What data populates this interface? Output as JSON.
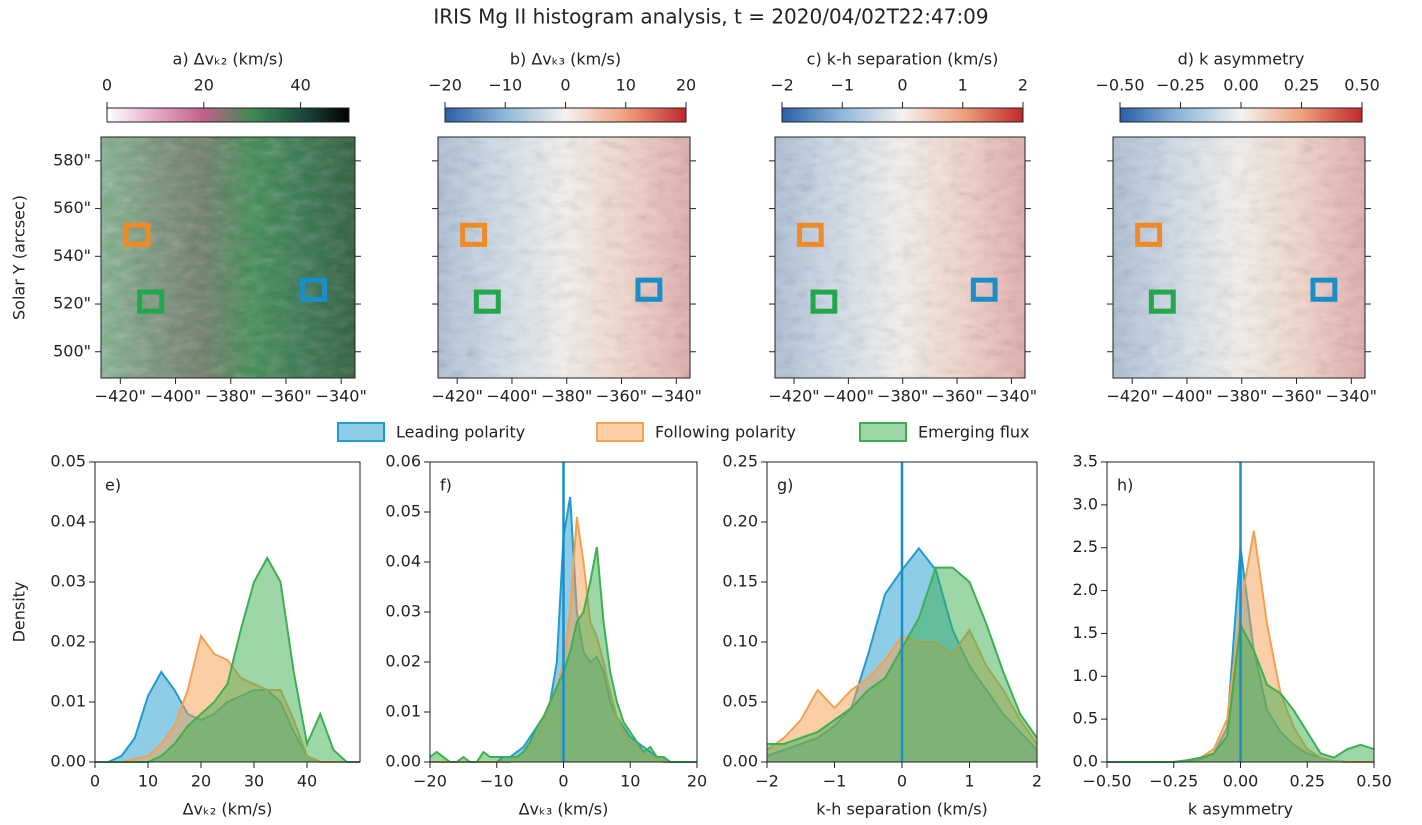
{
  "title": "IRIS Mg II histogram analysis, t = 2020/04/02T22:47:09",
  "chart_data": [
    {
      "type": "map",
      "title": "a) Δvₖ₂ (km/s)",
      "ylabel": "Solar Y (arcsec)",
      "colormap": [
        "#ffffff",
        "#e6a8c8",
        "#c0608a",
        "#3e8a52",
        "#1c4c40",
        "#000000"
      ],
      "clim": [
        0,
        50
      ],
      "cticks": [
        0,
        20,
        40
      ],
      "xlim": [
        -427,
        -335
      ],
      "ylim": [
        489,
        590
      ],
      "xticks": [
        {
          "value": -420,
          "label": "−420\""
        },
        {
          "value": -400,
          "label": "−400\""
        },
        {
          "value": -380,
          "label": "−380\""
        },
        {
          "value": -360,
          "label": "−360\""
        },
        {
          "value": -340,
          "label": "−340\""
        }
      ],
      "yticks": [
        {
          "value": 500,
          "label": "500\""
        },
        {
          "value": 520,
          "label": "520\""
        },
        {
          "value": 540,
          "label": "540\""
        },
        {
          "value": 560,
          "label": "560\""
        },
        {
          "value": 580,
          "label": "580\""
        }
      ],
      "ytick_labels": true,
      "box_size": 8,
      "boxes": [
        {
          "color": "#f08a24",
          "x": -414,
          "y": 549
        },
        {
          "color": "#22a84a",
          "x": -409,
          "y": 521
        },
        {
          "color": "#1a8ec8",
          "x": -350,
          "y": 526
        }
      ]
    },
    {
      "type": "map",
      "title": "b) Δvₖ₃ (km/s)",
      "colormap": [
        "#2a5fa8",
        "#8fb8da",
        "#f4f2f0",
        "#f0a080",
        "#c0282a"
      ],
      "clim": [
        -20,
        20
      ],
      "cticks": [
        {
          "value": -20,
          "label": "−20"
        },
        {
          "value": -10,
          "label": "−10"
        },
        0,
        10,
        20
      ],
      "xlim": [
        -427,
        -335
      ],
      "ylim": [
        489,
        590
      ],
      "xticks": [
        {
          "value": -420,
          "label": "−420\""
        },
        {
          "value": -400,
          "label": "−400\""
        },
        {
          "value": -380,
          "label": "−380\""
        },
        {
          "value": -360,
          "label": "−360\""
        },
        {
          "value": -340,
          "label": "−340\""
        }
      ],
      "yticks": [
        500,
        520,
        540,
        560,
        580
      ],
      "ytick_labels": false,
      "box_size": 8,
      "boxes": [
        {
          "color": "#f08a24",
          "x": -414,
          "y": 549
        },
        {
          "color": "#22a84a",
          "x": -409,
          "y": 521
        },
        {
          "color": "#1a8ec8",
          "x": -350,
          "y": 526
        }
      ]
    },
    {
      "type": "map",
      "title": "c) k-h separation (km/s)",
      "colormap": [
        "#2a5fa8",
        "#8fb8da",
        "#f4f2f0",
        "#f0a080",
        "#c0282a"
      ],
      "clim": [
        -2,
        2
      ],
      "cticks": [
        {
          "value": -2,
          "label": "−2"
        },
        {
          "value": -1,
          "label": "−1"
        },
        0,
        1,
        2
      ],
      "xlim": [
        -427,
        -335
      ],
      "ylim": [
        489,
        590
      ],
      "xticks": [
        {
          "value": -420,
          "label": "−420\""
        },
        {
          "value": -400,
          "label": "−400\""
        },
        {
          "value": -380,
          "label": "−380\""
        },
        {
          "value": -360,
          "label": "−360\""
        },
        {
          "value": -340,
          "label": "−340\""
        }
      ],
      "yticks": [
        500,
        520,
        540,
        560,
        580
      ],
      "ytick_labels": false,
      "box_size": 8,
      "boxes": [
        {
          "color": "#f08a24",
          "x": -414,
          "y": 549
        },
        {
          "color": "#22a84a",
          "x": -409,
          "y": 521
        },
        {
          "color": "#1a8ec8",
          "x": -350,
          "y": 526
        }
      ]
    },
    {
      "type": "map",
      "title": "d) k asymmetry",
      "colormap": [
        "#2a5fa8",
        "#8fb8da",
        "#f4f2f0",
        "#f0a080",
        "#c0282a"
      ],
      "clim": [
        -0.5,
        0.5
      ],
      "cticks": [
        {
          "value": -0.5,
          "label": "−0.50"
        },
        {
          "value": -0.25,
          "label": "−0.25"
        },
        {
          "value": 0,
          "label": "0.00"
        },
        {
          "value": 0.25,
          "label": "0.25"
        },
        {
          "value": 0.5,
          "label": "0.50"
        }
      ],
      "xlim": [
        -427,
        -335
      ],
      "ylim": [
        489,
        590
      ],
      "xticks": [
        {
          "value": -420,
          "label": "−420\""
        },
        {
          "value": -400,
          "label": "−400\""
        },
        {
          "value": -380,
          "label": "−380\""
        },
        {
          "value": -360,
          "label": "−360\""
        },
        {
          "value": -340,
          "label": "−340\""
        }
      ],
      "yticks": [
        500,
        520,
        540,
        560,
        580
      ],
      "ytick_labels": false,
      "box_size": 8,
      "boxes": [
        {
          "color": "#f08a24",
          "x": -414,
          "y": 549
        },
        {
          "color": "#22a84a",
          "x": -409,
          "y": 521
        },
        {
          "color": "#1a8ec8",
          "x": -350,
          "y": 526
        }
      ]
    },
    {
      "type": "density",
      "label": "e)",
      "xlabel": "Δvₖ₂ (km/s)",
      "ylabel": "Density",
      "xlim": [
        0,
        50
      ],
      "ylim": [
        0,
        0.05
      ],
      "xticks": [
        0,
        10,
        20,
        30,
        40
      ],
      "yticks": [
        {
          "value": 0,
          "label": "0.00"
        },
        0.01,
        0.02,
        0.03,
        0.04,
        0.05
      ],
      "x": [
        0,
        2.5,
        5,
        7.5,
        10,
        12.5,
        15,
        17.5,
        20,
        22.5,
        25,
        27.5,
        30,
        32.5,
        35,
        37.5,
        40,
        42.5,
        45,
        47.5,
        50
      ],
      "series": [
        {
          "name": "Leading polarity",
          "color": "#1f9bcf",
          "values": [
            0,
            0,
            0.001,
            0.004,
            0.011,
            0.015,
            0.012,
            0.008,
            0.007,
            0.008,
            0.01,
            0.011,
            0.012,
            0.012,
            0.01,
            0.005,
            0.001,
            0,
            0,
            0,
            0
          ]
        },
        {
          "name": "Following polarity",
          "color": "#f5a050",
          "values": [
            0,
            0,
            0,
            0.0005,
            0.001,
            0.003,
            0.006,
            0.012,
            0.021,
            0.018,
            0.017,
            0.014,
            0.013,
            0.012,
            0.012,
            0.007,
            0.001,
            0,
            0,
            0,
            0
          ]
        },
        {
          "name": "Emerging flux",
          "color": "#3cb050",
          "values": [
            0,
            0,
            0,
            0,
            0,
            0.001,
            0.003,
            0.006,
            0.008,
            0.01,
            0.013,
            0.022,
            0.03,
            0.034,
            0.03,
            0.015,
            0.003,
            0.008,
            0.002,
            0,
            0
          ]
        }
      ]
    },
    {
      "type": "density",
      "label": "f)",
      "xlabel": "Δvₖ₃ (km/s)",
      "xlim": [
        -20,
        20
      ],
      "ylim": [
        0,
        0.06
      ],
      "xticks": [
        {
          "value": -20,
          "label": "−20"
        },
        {
          "value": -10,
          "label": "−10"
        },
        0,
        10,
        20
      ],
      "yticks": [
        {
          "value": 0,
          "label": "0.00"
        },
        0.01,
        0.02,
        0.03,
        0.04,
        0.05,
        0.06
      ],
      "vline": 0,
      "vline_color": "#1a8ec8",
      "x": [
        -20,
        -19,
        -18,
        -17,
        -16,
        -15,
        -14,
        -13,
        -12,
        -11,
        -10,
        -9,
        -8,
        -7,
        -6,
        -5,
        -4,
        -3,
        -2,
        -1,
        0,
        1,
        2,
        3,
        4,
        5,
        6,
        7,
        8,
        9,
        10,
        11,
        12,
        13,
        14,
        15,
        16,
        17,
        18,
        19,
        20
      ],
      "series": [
        {
          "name": "Leading polarity",
          "color": "#1f9bcf",
          "values": [
            0,
            0,
            0,
            0,
            0,
            0,
            0,
            0,
            0,
            0,
            0,
            0.001,
            0.001,
            0.002,
            0.003,
            0.005,
            0.007,
            0.009,
            0.012,
            0.02,
            0.045,
            0.053,
            0.03,
            0.022,
            0.02,
            0.021,
            0.018,
            0.012,
            0.009,
            0.007,
            0.005,
            0.004,
            0.003,
            0.002,
            0.001,
            0.001,
            0,
            0,
            0,
            0,
            0
          ]
        },
        {
          "name": "Following polarity",
          "color": "#f5a050",
          "values": [
            0,
            0,
            0,
            0,
            0,
            0,
            0,
            0,
            0,
            0,
            0,
            0,
            0,
            0.001,
            0.002,
            0.003,
            0.005,
            0.008,
            0.012,
            0.015,
            0.02,
            0.03,
            0.049,
            0.04,
            0.028,
            0.025,
            0.02,
            0.014,
            0.009,
            0.006,
            0.004,
            0.003,
            0.002,
            0.001,
            0.001,
            0,
            0,
            0,
            0,
            0,
            0
          ]
        },
        {
          "name": "Emerging flux",
          "color": "#3cb050",
          "values": [
            0.001,
            0.002,
            0.001,
            0,
            0,
            0.001,
            0,
            0,
            0.002,
            0.001,
            0.001,
            0.001,
            0.001,
            0.001,
            0.002,
            0.004,
            0.007,
            0.009,
            0.012,
            0.015,
            0.018,
            0.022,
            0.028,
            0.03,
            0.036,
            0.043,
            0.028,
            0.018,
            0.012,
            0.008,
            0.006,
            0.004,
            0.002,
            0.003,
            0.001,
            0.001,
            0,
            0,
            0,
            0,
            0
          ]
        }
      ]
    },
    {
      "type": "density",
      "label": "g)",
      "xlabel": "k-h separation (km/s)",
      "xlim": [
        -2,
        2
      ],
      "ylim": [
        0,
        0.25
      ],
      "xticks": [
        {
          "value": -2,
          "label": "−2"
        },
        {
          "value": -1,
          "label": "−1"
        },
        0,
        1,
        2
      ],
      "yticks": [
        {
          "value": 0,
          "label": "0.00"
        },
        0.05,
        {
          "value": 0.1,
          "label": "0.10"
        },
        0.15,
        {
          "value": 0.2,
          "label": "0.20"
        },
        0.25
      ],
      "vline": 0,
      "vline_color": "#1a8ec8",
      "x": [
        -2,
        -1.75,
        -1.5,
        -1.25,
        -1,
        -0.75,
        -0.5,
        -0.25,
        0,
        0.25,
        0.5,
        0.75,
        1,
        1.25,
        1.5,
        1.75,
        2
      ],
      "series": [
        {
          "name": "Leading polarity",
          "color": "#1f9bcf",
          "values": [
            0.005,
            0.01,
            0.015,
            0.02,
            0.03,
            0.045,
            0.09,
            0.14,
            0.16,
            0.178,
            0.16,
            0.11,
            0.08,
            0.06,
            0.04,
            0.025,
            0.01
          ]
        },
        {
          "name": "Following polarity",
          "color": "#f5a050",
          "values": [
            0.01,
            0.02,
            0.035,
            0.06,
            0.045,
            0.06,
            0.07,
            0.085,
            0.105,
            0.1,
            0.1,
            0.09,
            0.11,
            0.08,
            0.06,
            0.035,
            0.015
          ]
        },
        {
          "name": "Emerging flux",
          "color": "#3cb050",
          "values": [
            0.015,
            0.015,
            0.02,
            0.025,
            0.035,
            0.045,
            0.06,
            0.07,
            0.095,
            0.12,
            0.162,
            0.162,
            0.15,
            0.115,
            0.075,
            0.04,
            0.02
          ]
        }
      ]
    },
    {
      "type": "density",
      "label": "h)",
      "xlabel": "k asymmetry",
      "xlim": [
        -0.5,
        0.5
      ],
      "ylim": [
        0,
        3.5
      ],
      "xticks": [
        {
          "value": -0.5,
          "label": "−0.50"
        },
        {
          "value": -0.25,
          "label": "−0.25"
        },
        {
          "value": 0,
          "label": "0.00"
        },
        0.25,
        {
          "value": 0.5,
          "label": "0.50"
        }
      ],
      "yticks": [
        {
          "value": 0,
          "label": "0.0"
        },
        0.5,
        {
          "value": 1,
          "label": "1.0"
        },
        1.5,
        {
          "value": 2,
          "label": "2.0"
        },
        2.5,
        {
          "value": 3,
          "label": "3.0"
        },
        3.5
      ],
      "vline": 0,
      "vline_color": "#1a8ec8",
      "x": [
        -0.5,
        -0.45,
        -0.4,
        -0.35,
        -0.3,
        -0.25,
        -0.2,
        -0.15,
        -0.1,
        -0.05,
        0,
        0.05,
        0.1,
        0.15,
        0.2,
        0.25,
        0.3,
        0.35,
        0.4,
        0.45,
        0.5
      ],
      "series": [
        {
          "name": "Leading polarity",
          "color": "#1f9bcf",
          "values": [
            0,
            0,
            0,
            0,
            0,
            0,
            0.01,
            0.03,
            0.1,
            0.4,
            2.5,
            1.3,
            0.6,
            0.35,
            0.2,
            0.1,
            0.05,
            0.01,
            0,
            0,
            0
          ]
        },
        {
          "name": "Following polarity",
          "color": "#f5a050",
          "values": [
            0,
            0,
            0,
            0,
            0,
            0,
            0.02,
            0.05,
            0.15,
            0.5,
            1.8,
            2.7,
            1.6,
            0.8,
            0.4,
            0.15,
            0.05,
            0.01,
            0,
            0,
            0
          ]
        },
        {
          "name": "Emerging flux",
          "color": "#3cb050",
          "values": [
            0,
            0,
            0,
            0,
            0,
            0,
            0.02,
            0.05,
            0.1,
            0.3,
            1.6,
            1.3,
            0.9,
            0.8,
            0.6,
            0.35,
            0.1,
            0.05,
            0.15,
            0.2,
            0.15
          ]
        }
      ]
    }
  ]
}
